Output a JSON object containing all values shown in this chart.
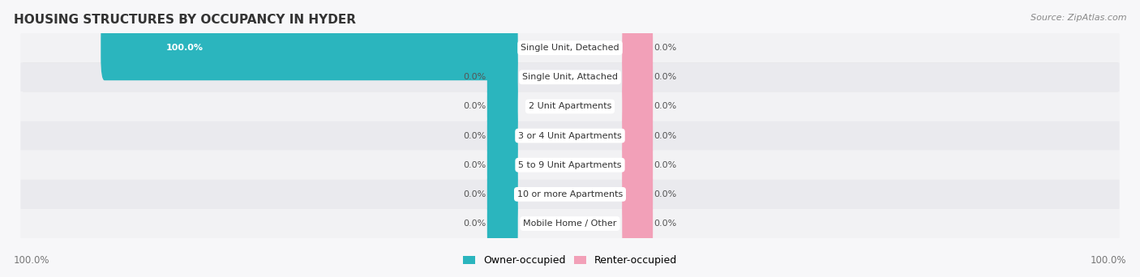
{
  "title": "HOUSING STRUCTURES BY OCCUPANCY IN HYDER",
  "source": "Source: ZipAtlas.com",
  "categories": [
    "Single Unit, Detached",
    "Single Unit, Attached",
    "2 Unit Apartments",
    "3 or 4 Unit Apartments",
    "5 to 9 Unit Apartments",
    "10 or more Apartments",
    "Mobile Home / Other"
  ],
  "owner_values": [
    100.0,
    0.0,
    0.0,
    0.0,
    0.0,
    0.0,
    0.0
  ],
  "renter_values": [
    0.0,
    0.0,
    0.0,
    0.0,
    0.0,
    0.0,
    0.0
  ],
  "owner_color": "#2BB5BE",
  "renter_color": "#F2A0B8",
  "row_bg_color_odd": "#F2F2F4",
  "row_bg_color_even": "#EAEAEE",
  "bg_color": "#F7F7F9",
  "label_color": "#555555",
  "title_color": "#333333",
  "source_color": "#888888",
  "axis_label_color": "#777777",
  "max_value": 100.0,
  "figsize": [
    14.06,
    3.42
  ],
  "dpi": 100,
  "legend_labels": [
    "Owner-occupied",
    "Renter-occupied"
  ],
  "bottom_left_label": "100.0%",
  "bottom_right_label": "100.0%",
  "min_bar_display": 3.0,
  "stub_bar_width": 5.0
}
